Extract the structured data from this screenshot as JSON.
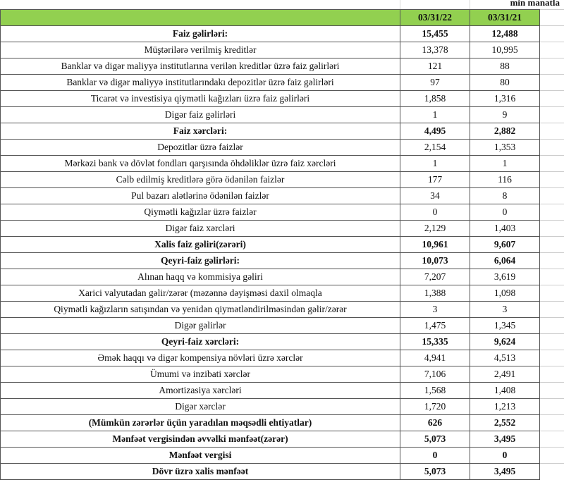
{
  "unit_label": "min manatla",
  "columns": [
    "",
    "03/31/22",
    "03/31/21"
  ],
  "header_color": "#92d050",
  "rows": [
    {
      "label": "Faiz gəlirləri:",
      "v1": "15,455",
      "v2": "12,488",
      "bold": true
    },
    {
      "label": "Müştərilərə verilmiş kreditlər",
      "v1": "13,378",
      "v2": "10,995",
      "bold": false
    },
    {
      "label": "Banklar və digər maliyyə institutlarına verilən kreditlər üzrə faiz gəlirləri",
      "v1": "121",
      "v2": "88",
      "bold": false
    },
    {
      "label": "Banklar və digər maliyyə institutlarındakı depozitlər üzrə faiz gəlirləri",
      "v1": "97",
      "v2": "80",
      "bold": false
    },
    {
      "label": "Ticarət və investisiya qiymətli kağızları üzrə faiz gəlirləri",
      "v1": "1,858",
      "v2": "1,316",
      "bold": false
    },
    {
      "label": "Digər faiz gəlirləri",
      "v1": "1",
      "v2": "9",
      "bold": false
    },
    {
      "label": "Faiz xərcləri:",
      "v1": "4,495",
      "v2": "2,882",
      "bold": true
    },
    {
      "label": "Depozitlər üzrə faizlər",
      "v1": "2,154",
      "v2": "1,353",
      "bold": false
    },
    {
      "label": "Mərkəzi bank və dövlət fondları qarşısında öhdəliklər üzrə faiz xərcləri",
      "v1": "1",
      "v2": "1",
      "bold": false
    },
    {
      "label": "Cəlb edilmiş kreditlərə görə ödənilən faizlər",
      "v1": "177",
      "v2": "116",
      "bold": false
    },
    {
      "label": "Pul bazarı alətlərinə ödənilən faizlər",
      "v1": "34",
      "v2": "8",
      "bold": false
    },
    {
      "label": "Qiymətli kağızlar üzrə faizlər",
      "v1": "0",
      "v2": "0",
      "bold": false
    },
    {
      "label": "Digər faiz xərcləri",
      "v1": "2,129",
      "v2": "1,403",
      "bold": false
    },
    {
      "label": "Xalis faiz gəliri(zərəri)",
      "v1": "10,961",
      "v2": "9,607",
      "bold": true
    },
    {
      "label": "Qeyri-faiz gəlirləri:",
      "v1": "10,073",
      "v2": "6,064",
      "bold": true
    },
    {
      "label": "Alınan haqq və kommisiya gəliri",
      "v1": "7,207",
      "v2": "3,619",
      "bold": false
    },
    {
      "label": "Xarici valyutadan gəlir/zərər (məzənnə dəyişməsi daxil olmaqla",
      "v1": "1,388",
      "v2": "1,098",
      "bold": false
    },
    {
      "label": "Qiymətli kağızların satışından və yenidən qiymətləndirilməsindən gəlir/zərər",
      "v1": "3",
      "v2": "3",
      "bold": false
    },
    {
      "label": "Digər gəlirlər",
      "v1": "1,475",
      "v2": "1,345",
      "bold": false
    },
    {
      "label": "Qeyri-faiz xərcləri:",
      "v1": "15,335",
      "v2": "9,624",
      "bold": true
    },
    {
      "label": "Əmək haqqı və digər kompensiya növləri üzrə xərclər",
      "v1": "4,941",
      "v2": "4,513",
      "bold": false
    },
    {
      "label": "Ümumi və inzibati xərclər",
      "v1": "7,106",
      "v2": "2,491",
      "bold": false
    },
    {
      "label": "Amortizasiya xərcləri",
      "v1": "1,568",
      "v2": "1,408",
      "bold": false
    },
    {
      "label": "Digər xərclər",
      "v1": "1,720",
      "v2": "1,213",
      "bold": false
    },
    {
      "label": "(Mümkün zərərlər üçün yaradılan məqsədli ehtiyatlar)",
      "v1": "626",
      "v2": "2,552",
      "bold": true
    },
    {
      "label": "Mənfəət vergisindən əvvəlki mənfəət(zərər)",
      "v1": "5,073",
      "v2": "3,495",
      "bold": true
    },
    {
      "label": "Mənfəət vergisi",
      "v1": "0",
      "v2": "0",
      "bold": true
    },
    {
      "label": "Dövr üzrə xalis mənfəət",
      "v1": "5,073",
      "v2": "3,495",
      "bold": true
    }
  ]
}
